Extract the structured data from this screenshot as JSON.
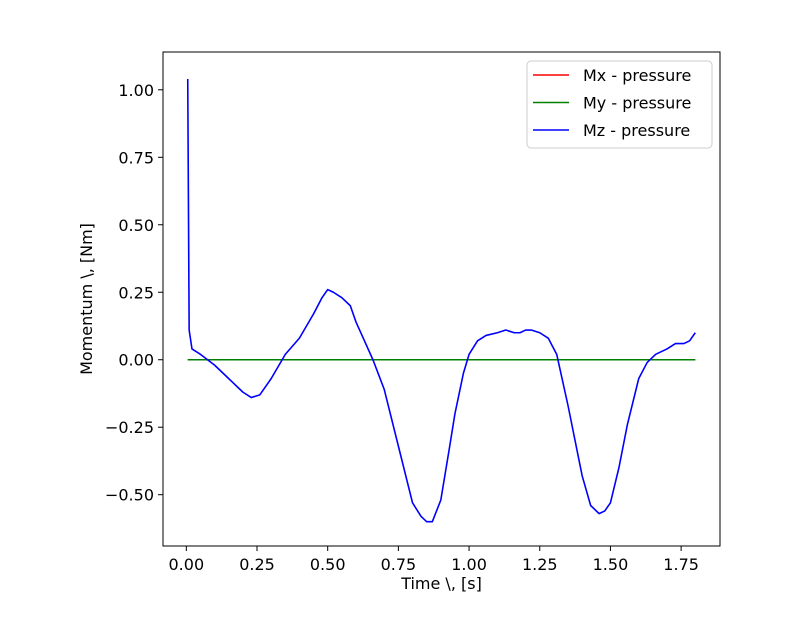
{
  "chart_data": {
    "type": "line",
    "xlabel": "Time \\, [s]",
    "ylabel": "Momentum \\, [Nm]",
    "xlim": [
      -0.0825,
      1.8875
    ],
    "ylim": [
      -0.69,
      1.14
    ],
    "xticks": [
      0.0,
      0.25,
      0.5,
      0.75,
      1.0,
      1.25,
      1.5,
      1.75
    ],
    "xtick_labels": [
      "0.00",
      "0.25",
      "0.50",
      "0.75",
      "1.00",
      "1.25",
      "1.50",
      "1.75"
    ],
    "yticks": [
      -0.5,
      -0.25,
      0.0,
      0.25,
      0.5,
      0.75,
      1.0
    ],
    "ytick_labels": [
      "−0.50",
      "−0.25",
      "0.00",
      "0.25",
      "0.50",
      "0.75",
      "1.00"
    ],
    "grid": false,
    "legend_position": "top-right",
    "series": [
      {
        "name": "Mx - pressure",
        "color": "#ff0000",
        "x": [
          0.005,
          1.8
        ],
        "y": [
          0.0,
          0.0
        ]
      },
      {
        "name": "My - pressure",
        "color": "#008000",
        "x": [
          0.005,
          1.8
        ],
        "y": [
          0.0,
          0.0
        ]
      },
      {
        "name": "Mz - pressure",
        "color": "#0000ff",
        "x": [
          0.005,
          0.01,
          0.02,
          0.05,
          0.1,
          0.15,
          0.2,
          0.23,
          0.26,
          0.3,
          0.35,
          0.4,
          0.45,
          0.48,
          0.5,
          0.52,
          0.55,
          0.58,
          0.6,
          0.63,
          0.66,
          0.7,
          0.75,
          0.8,
          0.83,
          0.85,
          0.87,
          0.9,
          0.93,
          0.95,
          0.98,
          1.0,
          1.03,
          1.06,
          1.1,
          1.13,
          1.16,
          1.18,
          1.2,
          1.22,
          1.25,
          1.28,
          1.31,
          1.35,
          1.4,
          1.43,
          1.46,
          1.48,
          1.5,
          1.53,
          1.56,
          1.6,
          1.63,
          1.66,
          1.7,
          1.73,
          1.76,
          1.78,
          1.8
        ],
        "y": [
          1.04,
          0.11,
          0.04,
          0.02,
          -0.02,
          -0.07,
          -0.12,
          -0.14,
          -0.13,
          -0.07,
          0.02,
          0.08,
          0.17,
          0.23,
          0.26,
          0.25,
          0.23,
          0.2,
          0.14,
          0.07,
          0.0,
          -0.11,
          -0.32,
          -0.53,
          -0.58,
          -0.6,
          -0.6,
          -0.52,
          -0.33,
          -0.2,
          -0.05,
          0.02,
          0.07,
          0.09,
          0.1,
          0.11,
          0.1,
          0.1,
          0.11,
          0.11,
          0.1,
          0.08,
          0.02,
          -0.17,
          -0.43,
          -0.54,
          -0.57,
          -0.56,
          -0.53,
          -0.4,
          -0.24,
          -0.07,
          -0.01,
          0.02,
          0.04,
          0.06,
          0.06,
          0.07,
          0.1
        ]
      }
    ]
  }
}
